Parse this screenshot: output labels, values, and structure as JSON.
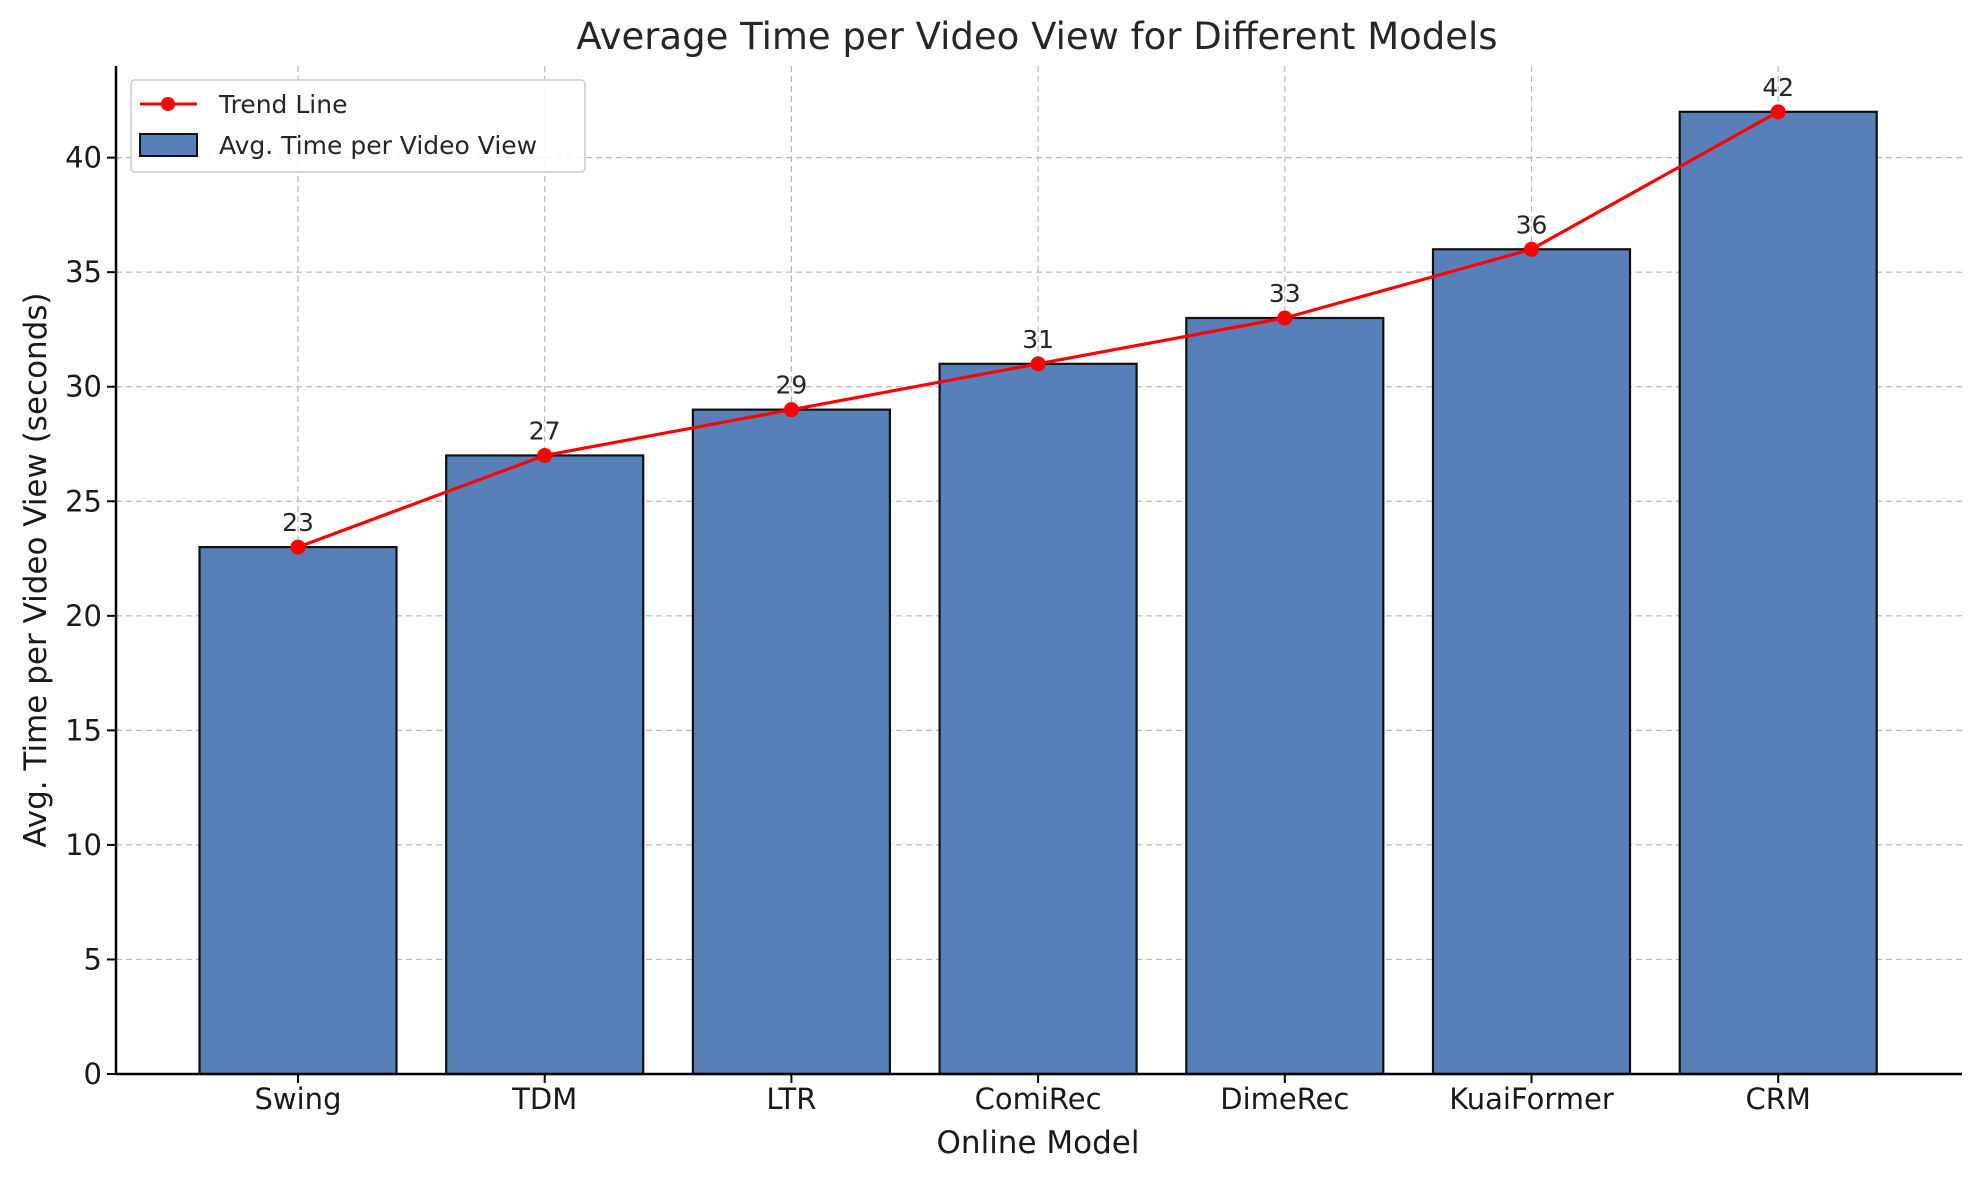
{
  "chart_data": {
    "type": "bar",
    "title": "Average Time per Video View for Different Models",
    "xlabel": "Online Model",
    "ylabel": "Avg. Time per Video View (seconds)",
    "categories": [
      "Swing",
      "TDM",
      "LTR",
      "ComiRec",
      "DimeRec",
      "KuaiFormer",
      "CRM"
    ],
    "series": [
      {
        "name": "Avg. Time per Video View",
        "kind": "bar",
        "color": "#5780b9",
        "values": [
          23,
          27,
          29,
          31,
          33,
          36,
          42
        ]
      },
      {
        "name": "Trend Line",
        "kind": "line",
        "color": "#ff0000",
        "values": [
          23,
          27,
          29,
          31,
          33,
          36,
          42
        ]
      }
    ],
    "data_labels": [
      "23",
      "27",
      "29",
      "31",
      "33",
      "36",
      "42"
    ],
    "ylim": [
      0,
      44
    ],
    "yticks": [
      0,
      5,
      10,
      15,
      20,
      25,
      30,
      35,
      40
    ],
    "ytick_labels": [
      "0",
      "5",
      "10",
      "15",
      "20",
      "25",
      "30",
      "35",
      "40"
    ],
    "grid": true,
    "legend": {
      "placement": "upper-left",
      "entries": [
        "Trend Line",
        "Avg. Time per Video View"
      ]
    }
  }
}
